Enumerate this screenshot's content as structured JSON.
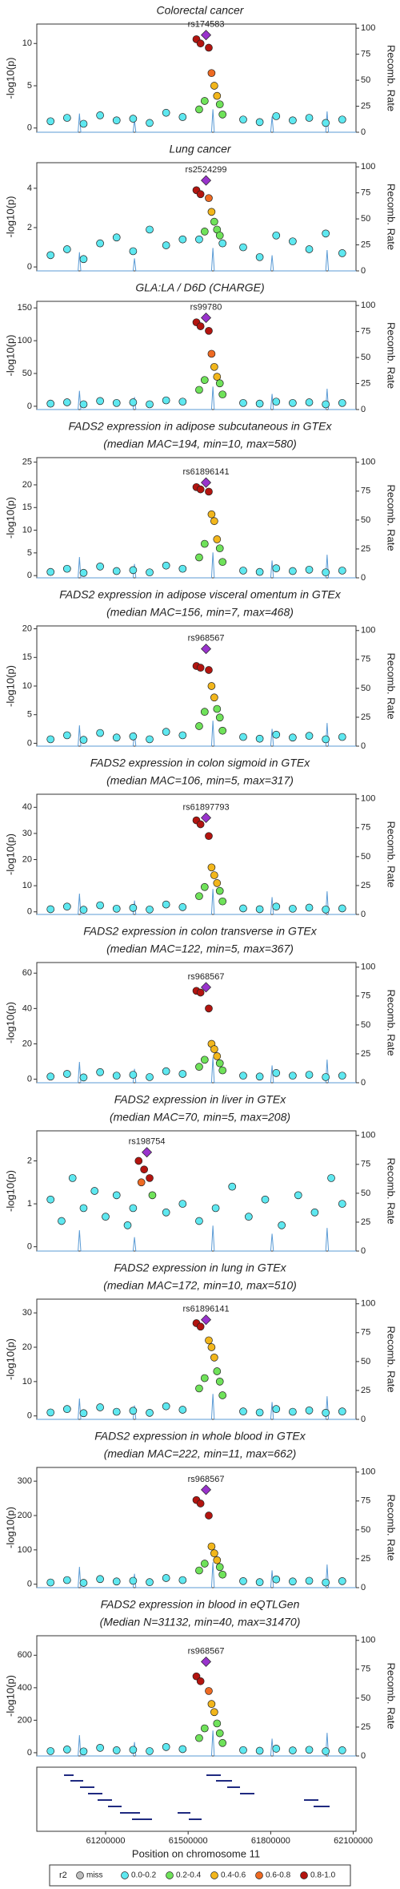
{
  "chart_data": [
    {
      "type": "scatter",
      "title": "Colorectal cancer",
      "ylabel": "-log10(p)",
      "y2label": "Recomb. Rate",
      "ylim": [
        -0.5,
        12.3
      ],
      "yticks": [
        0,
        5,
        10
      ],
      "y2lim": [
        0,
        104
      ],
      "y2ticks": [
        0,
        25,
        50,
        75,
        100
      ],
      "x": [
        61000000,
        61060000,
        61120000,
        61180000,
        61240000,
        61300000,
        61360000,
        61420000,
        61480000,
        61700000,
        61760000,
        61820000,
        61880000,
        61940000,
        62000000,
        62060000,
        61530000,
        61545000,
        61575000,
        61585000,
        61595000,
        61605000,
        61615000,
        61560000,
        61540000,
        61625000
      ],
      "values": [
        0.8,
        1.2,
        0.5,
        1.5,
        0.9,
        1.1,
        0.6,
        1.8,
        1.3,
        1.0,
        0.7,
        1.4,
        0.9,
        1.2,
        0.6,
        1.0,
        10.5,
        10.0,
        9.5,
        6.5,
        5.0,
        3.8,
        2.8,
        3.2,
        2.2,
        1.6
      ],
      "r2_class": [
        1,
        1,
        1,
        1,
        1,
        1,
        1,
        1,
        1,
        1,
        1,
        1,
        1,
        1,
        1,
        1,
        5,
        5,
        5,
        4,
        3,
        3,
        2,
        2,
        2,
        2
      ],
      "lead": {
        "label": "rs174583",
        "x": 61565000,
        "value": 11
      }
    },
    {
      "type": "scatter",
      "title": "Lung cancer",
      "ylabel": "-log10(p)",
      "y2label": "Recomb. Rate",
      "ylim": [
        -0.2,
        5.3
      ],
      "yticks": [
        0,
        2,
        4
      ],
      "y2lim": [
        0,
        104
      ],
      "y2ticks": [
        0,
        25,
        50,
        75,
        100
      ],
      "x": [
        61000000,
        61060000,
        61120000,
        61180000,
        61240000,
        61300000,
        61360000,
        61420000,
        61480000,
        61700000,
        61760000,
        61820000,
        61880000,
        61940000,
        62000000,
        62060000,
        61530000,
        61545000,
        61575000,
        61585000,
        61595000,
        61605000,
        61615000,
        61560000,
        61540000,
        61625000
      ],
      "values": [
        0.6,
        0.9,
        0.4,
        1.2,
        1.5,
        0.8,
        1.9,
        1.1,
        1.4,
        1.0,
        0.5,
        1.6,
        1.3,
        0.9,
        1.7,
        0.7,
        3.9,
        3.7,
        3.5,
        2.8,
        2.3,
        1.9,
        1.6,
        1.8,
        1.4,
        1.2
      ],
      "r2_class": [
        1,
        1,
        1,
        1,
        1,
        1,
        1,
        1,
        1,
        1,
        1,
        1,
        1,
        1,
        1,
        1,
        5,
        5,
        4,
        3,
        2,
        2,
        2,
        2,
        1,
        1
      ],
      "lead": {
        "label": "rs2524299",
        "x": 61565000,
        "value": 4.4
      }
    },
    {
      "type": "scatter",
      "title": "GLA:LA / D6D (CHARGE)",
      "ylabel": "-log10(p)",
      "y2label": "Recomb. Rate",
      "ylim": [
        -5,
        160
      ],
      "yticks": [
        0,
        50,
        100,
        150
      ],
      "y2lim": [
        0,
        104
      ],
      "y2ticks": [
        0,
        25,
        50,
        75,
        100
      ],
      "x": [
        61000000,
        61060000,
        61120000,
        61180000,
        61240000,
        61300000,
        61360000,
        61420000,
        61480000,
        61700000,
        61760000,
        61820000,
        61880000,
        61940000,
        62000000,
        62060000,
        61530000,
        61545000,
        61575000,
        61585000,
        61595000,
        61605000,
        61615000,
        61560000,
        61540000,
        61625000
      ],
      "values": [
        4,
        6,
        3,
        8,
        5,
        6,
        3,
        9,
        7,
        5,
        4,
        7,
        5,
        6,
        3,
        5,
        128,
        122,
        115,
        80,
        60,
        45,
        35,
        40,
        25,
        18
      ],
      "r2_class": [
        1,
        1,
        1,
        1,
        1,
        1,
        1,
        1,
        1,
        1,
        1,
        1,
        1,
        1,
        1,
        1,
        5,
        5,
        5,
        4,
        3,
        3,
        2,
        2,
        2,
        2
      ],
      "lead": {
        "label": "rs99780",
        "x": 61565000,
        "value": 135
      }
    },
    {
      "type": "scatter",
      "title": "FADS2 expression in adipose subcutaneous in GTEx",
      "subtitle": "(median MAC=194, min=10, max=580)",
      "ylabel": "-log10(p)",
      "y2label": "Recomb. Rate",
      "ylim": [
        -0.5,
        26
      ],
      "yticks": [
        0,
        5,
        10,
        15,
        20,
        25
      ],
      "y2lim": [
        0,
        104
      ],
      "y2ticks": [
        0,
        25,
        50,
        75,
        100
      ],
      "x": [
        61000000,
        61060000,
        61120000,
        61180000,
        61240000,
        61300000,
        61360000,
        61420000,
        61480000,
        61700000,
        61760000,
        61820000,
        61880000,
        61940000,
        62000000,
        62060000,
        61530000,
        61545000,
        61575000,
        61585000,
        61595000,
        61605000,
        61615000,
        61560000,
        61540000,
        61625000
      ],
      "values": [
        0.8,
        1.5,
        0.6,
        2.0,
        1.0,
        1.2,
        0.7,
        2.2,
        1.5,
        1.1,
        0.8,
        1.6,
        1.0,
        1.3,
        0.7,
        1.1,
        19.5,
        19.0,
        18.5,
        13.5,
        12,
        8,
        6,
        7,
        4,
        3
      ],
      "r2_class": [
        1,
        1,
        1,
        1,
        1,
        1,
        1,
        1,
        1,
        1,
        1,
        1,
        1,
        1,
        1,
        1,
        5,
        5,
        5,
        3,
        3,
        3,
        2,
        2,
        2,
        2
      ],
      "lead": {
        "label": "rs61896141",
        "x": 61565000,
        "value": 20.5
      }
    },
    {
      "type": "scatter",
      "title": "FADS2 expression in adipose visceral omentum in GTEx",
      "subtitle": "(median MAC=156, min=7, max=468)",
      "ylabel": "-log10(p)",
      "y2label": "Recomb. Rate",
      "ylim": [
        -0.5,
        20.5
      ],
      "yticks": [
        0,
        5,
        10,
        15,
        20
      ],
      "y2lim": [
        0,
        104
      ],
      "y2ticks": [
        0,
        25,
        50,
        75,
        100
      ],
      "x": [
        61000000,
        61060000,
        61120000,
        61180000,
        61240000,
        61300000,
        61360000,
        61420000,
        61480000,
        61700000,
        61760000,
        61820000,
        61880000,
        61940000,
        62000000,
        62060000,
        61530000,
        61545000,
        61575000,
        61585000,
        61595000,
        61605000,
        61615000,
        61560000,
        61540000,
        61625000
      ],
      "values": [
        0.7,
        1.4,
        0.6,
        1.8,
        1.0,
        1.2,
        0.7,
        2.0,
        1.4,
        1.1,
        0.8,
        1.5,
        1.0,
        1.3,
        0.7,
        1.1,
        13.5,
        13.2,
        12.8,
        10,
        8,
        6,
        4.5,
        5.5,
        3,
        2.2
      ],
      "r2_class": [
        1,
        1,
        1,
        1,
        1,
        1,
        1,
        1,
        1,
        1,
        1,
        1,
        1,
        1,
        1,
        1,
        5,
        5,
        5,
        3,
        3,
        2,
        2,
        2,
        2,
        2
      ],
      "lead": {
        "label": "rs968567",
        "x": 61565000,
        "value": 16.5
      }
    },
    {
      "type": "scatter",
      "title": "FADS2 expression in colon sigmoid in GTEx",
      "subtitle": "(median MAC=106, min=5, max=317)",
      "ylabel": "-log10(p)",
      "y2label": "Recomb. Rate",
      "ylim": [
        -1,
        45
      ],
      "yticks": [
        0,
        10,
        20,
        30,
        40
      ],
      "y2lim": [
        0,
        104
      ],
      "y2ticks": [
        0,
        25,
        50,
        75,
        100
      ],
      "x": [
        61000000,
        61060000,
        61120000,
        61180000,
        61240000,
        61300000,
        61360000,
        61420000,
        61480000,
        61700000,
        61760000,
        61820000,
        61880000,
        61940000,
        62000000,
        62060000,
        61530000,
        61545000,
        61575000,
        61585000,
        61595000,
        61605000,
        61615000,
        61560000,
        61540000,
        61625000
      ],
      "values": [
        1,
        2,
        0.8,
        2.5,
        1.2,
        1.5,
        0.9,
        2.8,
        1.8,
        1.3,
        1,
        2,
        1.2,
        1.6,
        0.9,
        1.3,
        35,
        33.5,
        29,
        17,
        14,
        11,
        8,
        9.5,
        6,
        4
      ],
      "r2_class": [
        1,
        1,
        1,
        1,
        1,
        1,
        1,
        1,
        1,
        1,
        1,
        1,
        1,
        1,
        1,
        1,
        5,
        5,
        5,
        3,
        3,
        3,
        2,
        2,
        2,
        2
      ],
      "lead": {
        "label": "rs61897793",
        "x": 61565000,
        "value": 36
      }
    },
    {
      "type": "scatter",
      "title": "FADS2 expression in colon transverse in GTEx",
      "subtitle": "(median MAC=122, min=5, max=367)",
      "ylabel": "-log10(p)",
      "y2label": "Recomb. Rate",
      "ylim": [
        -2,
        66
      ],
      "yticks": [
        0,
        20,
        40,
        60
      ],
      "y2lim": [
        0,
        104
      ],
      "y2ticks": [
        0,
        25,
        50,
        75,
        100
      ],
      "x": [
        61000000,
        61060000,
        61120000,
        61180000,
        61240000,
        61300000,
        61360000,
        61420000,
        61480000,
        61700000,
        61760000,
        61820000,
        61880000,
        61940000,
        62000000,
        62060000,
        61530000,
        61545000,
        61575000,
        61585000,
        61595000,
        61605000,
        61615000,
        61560000,
        61540000,
        61625000
      ],
      "values": [
        1.5,
        3,
        1,
        4,
        2,
        2.5,
        1.2,
        4.5,
        3,
        2,
        1.5,
        3.5,
        2,
        2.5,
        1.2,
        2,
        50,
        49,
        40,
        20,
        17,
        13,
        9,
        11,
        7,
        5
      ],
      "r2_class": [
        1,
        1,
        1,
        1,
        1,
        1,
        1,
        1,
        1,
        1,
        1,
        1,
        1,
        1,
        1,
        1,
        5,
        5,
        5,
        3,
        3,
        3,
        2,
        2,
        2,
        2
      ],
      "lead": {
        "label": "rs968567",
        "x": 61565000,
        "value": 52
      }
    },
    {
      "type": "scatter",
      "title": "FADS2 expression in liver in GTEx",
      "subtitle": "(median MAC=70, min=5, max=208)",
      "ylabel": "-log10(p)",
      "y2label": "Recomb. Rate",
      "ylim": [
        -0.1,
        2.7
      ],
      "yticks": [
        0,
        1,
        2
      ],
      "y2lim": [
        0,
        104
      ],
      "y2ticks": [
        0,
        25,
        50,
        75,
        100
      ],
      "x": [
        61000000,
        61040000,
        61080000,
        61120000,
        61160000,
        61200000,
        61240000,
        61280000,
        61420000,
        61480000,
        61540000,
        61600000,
        61660000,
        61720000,
        61780000,
        61840000,
        61900000,
        61960000,
        62020000,
        62060000,
        61320000,
        61340000,
        61360000,
        61330000,
        61370000,
        61300000
      ],
      "values": [
        1.1,
        0.6,
        1.6,
        0.9,
        1.3,
        0.7,
        1.2,
        0.5,
        0.8,
        1.0,
        0.6,
        0.9,
        1.4,
        0.7,
        1.1,
        0.5,
        1.2,
        0.8,
        1.6,
        1.0,
        2.0,
        1.8,
        1.6,
        1.5,
        1.2,
        0.9
      ],
      "r2_class": [
        1,
        1,
        1,
        1,
        1,
        1,
        1,
        1,
        1,
        1,
        1,
        1,
        1,
        1,
        1,
        1,
        1,
        1,
        1,
        1,
        5,
        5,
        5,
        4,
        2,
        1
      ],
      "lead": {
        "label": "rs198754",
        "x": 61350000,
        "value": 2.2
      }
    },
    {
      "type": "scatter",
      "title": "FADS2 expression in lung in GTEx",
      "subtitle": "(median MAC=172, min=10, max=510)",
      "ylabel": "-log10(p)",
      "y2label": "Recomb. Rate",
      "ylim": [
        -1,
        34
      ],
      "yticks": [
        0,
        10,
        20,
        30
      ],
      "y2lim": [
        0,
        104
      ],
      "y2ticks": [
        0,
        25,
        50,
        75,
        100
      ],
      "x": [
        61000000,
        61060000,
        61120000,
        61180000,
        61240000,
        61300000,
        61360000,
        61420000,
        61480000,
        61700000,
        61760000,
        61820000,
        61880000,
        61940000,
        62000000,
        62060000,
        61530000,
        61545000,
        61575000,
        61585000,
        61595000,
        61605000,
        61615000,
        61560000,
        61540000,
        61625000
      ],
      "values": [
        1,
        2,
        0.8,
        2.5,
        1.2,
        1.5,
        0.9,
        2.8,
        1.8,
        1.3,
        1,
        2,
        1.2,
        1.6,
        0.9,
        1.3,
        27,
        26,
        22,
        20,
        17,
        13,
        10,
        11,
        8,
        6
      ],
      "r2_class": [
        1,
        1,
        1,
        1,
        1,
        1,
        1,
        1,
        1,
        1,
        1,
        1,
        1,
        1,
        1,
        1,
        5,
        5,
        3,
        3,
        3,
        2,
        2,
        2,
        2,
        2
      ],
      "lead": {
        "label": "rs61896141",
        "x": 61565000,
        "value": 28
      }
    },
    {
      "type": "scatter",
      "title": "FADS2 expression in whole blood in GTEx",
      "subtitle": "(median MAC=222, min=11, max=662)",
      "ylabel": "-log10(p)",
      "y2label": "Recomb. Rate",
      "ylim": [
        -10,
        340
      ],
      "yticks": [
        0,
        100,
        200,
        300
      ],
      "y2lim": [
        0,
        104
      ],
      "y2ticks": [
        0,
        25,
        50,
        75,
        100
      ],
      "x": [
        61000000,
        61060000,
        61120000,
        61180000,
        61240000,
        61300000,
        61360000,
        61420000,
        61480000,
        61700000,
        61760000,
        61820000,
        61880000,
        61940000,
        62000000,
        62060000,
        61530000,
        61545000,
        61575000,
        61585000,
        61595000,
        61605000,
        61615000,
        61560000,
        61540000,
        61625000
      ],
      "values": [
        5,
        12,
        4,
        15,
        8,
        10,
        6,
        18,
        12,
        9,
        6,
        14,
        8,
        10,
        5,
        9,
        245,
        235,
        200,
        110,
        90,
        70,
        50,
        60,
        40,
        28
      ],
      "r2_class": [
        1,
        1,
        1,
        1,
        1,
        1,
        1,
        1,
        1,
        1,
        1,
        1,
        1,
        1,
        1,
        1,
        5,
        5,
        5,
        3,
        3,
        3,
        2,
        2,
        2,
        2
      ],
      "lead": {
        "label": "rs968567",
        "x": 61565000,
        "value": 275
      }
    },
    {
      "type": "scatter",
      "title": "FADS2 expression in blood in eQTLGen",
      "subtitle": "(Median N=31132, min=40, max=31470)",
      "ylabel": "-log10(p)",
      "y2label": "Recomb. Rate",
      "ylim": [
        -20,
        720
      ],
      "yticks": [
        0,
        200,
        400,
        600
      ],
      "y2lim": [
        0,
        104
      ],
      "y2ticks": [
        0,
        25,
        50,
        75,
        100
      ],
      "x": [
        61000000,
        61060000,
        61120000,
        61180000,
        61240000,
        61300000,
        61360000,
        61420000,
        61480000,
        61700000,
        61760000,
        61820000,
        61880000,
        61940000,
        62000000,
        62060000,
        61530000,
        61545000,
        61575000,
        61585000,
        61595000,
        61605000,
        61615000,
        61560000,
        61540000,
        61625000
      ],
      "values": [
        10,
        20,
        8,
        30,
        15,
        18,
        10,
        35,
        22,
        16,
        12,
        25,
        14,
        18,
        9,
        15,
        470,
        440,
        380,
        300,
        250,
        180,
        120,
        150,
        90,
        60
      ],
      "r2_class": [
        1,
        1,
        1,
        1,
        1,
        1,
        1,
        1,
        1,
        1,
        1,
        1,
        1,
        1,
        1,
        1,
        5,
        5,
        4,
        3,
        3,
        2,
        2,
        2,
        2,
        2
      ],
      "lead": {
        "label": "rs968567",
        "x": 61565000,
        "value": 560
      }
    }
  ],
  "lead_color": "#9933cc",
  "recomb": {
    "color": "#5b9bd5",
    "x": [
      60950000,
      61100000,
      61105000,
      61110000,
      61300000,
      61305000,
      61310000,
      61585000,
      61590000,
      61595000,
      61800000,
      61805000,
      61810000,
      62000000,
      62005000,
      62010000,
      62110000
    ],
    "values": [
      0,
      0,
      18,
      0,
      0,
      12,
      0,
      0,
      22,
      0,
      0,
      15,
      0,
      0,
      20,
      0,
      0
    ]
  },
  "x_axis": {
    "label": "Position on chromosome 11",
    "xlim": [
      60950000,
      62110000
    ],
    "xticks": [
      61200000,
      61500000,
      61800000,
      62100000
    ]
  },
  "legend": {
    "title": "r2",
    "items": [
      {
        "label": "miss",
        "color": "#bdbdbd"
      },
      {
        "label": "0.0-0.2",
        "color": "#5ee8f0"
      },
      {
        "label": "0.2-0.4",
        "color": "#6fe25a"
      },
      {
        "label": "0.4-0.6",
        "color": "#f2b61c"
      },
      {
        "label": "0.6-0.8",
        "color": "#ee6a22"
      },
      {
        "label": "0.8-1.0",
        "color": "#b3140f"
      }
    ]
  }
}
